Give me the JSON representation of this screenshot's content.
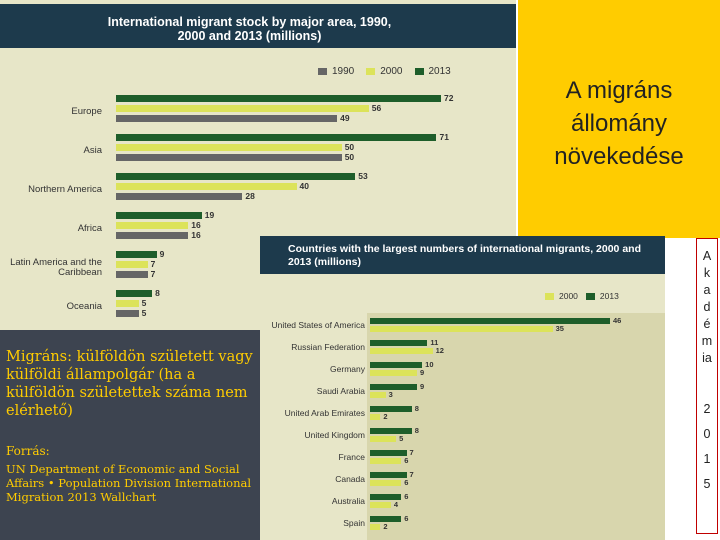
{
  "chart_data": [
    {
      "type": "bar",
      "orientation": "horizontal",
      "title": "International migrant stock by major area, 1990, 2000 and 2013 (millions)",
      "categories": [
        "Europe",
        "Asia",
        "Northern America",
        "Africa",
        "Latin America and the Caribbean",
        "Oceania"
      ],
      "series": [
        {
          "name": "1990",
          "values": [
            49,
            50,
            28,
            16,
            7,
            5
          ],
          "color": "#666666"
        },
        {
          "name": "2000",
          "values": [
            56,
            50,
            40,
            16,
            7,
            5
          ],
          "color": "#dce35a"
        },
        {
          "name": "2013",
          "values": [
            72,
            71,
            53,
            19,
            9,
            8
          ],
          "color": "#1e5e2a"
        }
      ],
      "legend": "top-right",
      "xlim": [
        0,
        80
      ]
    },
    {
      "type": "bar",
      "orientation": "horizontal",
      "title": "Countries with the largest numbers of international migrants, 2000 and 2013 (millions)",
      "categories": [
        "United States of America",
        "Russian Federation",
        "Germany",
        "Saudi Arabia",
        "United Arab Emirates",
        "United Kingdom",
        "France",
        "Canada",
        "Australia",
        "Spain"
      ],
      "series": [
        {
          "name": "2000",
          "values": [
            35,
            12,
            9,
            3,
            2,
            5,
            6,
            6,
            4,
            2
          ],
          "color": "#dce35a"
        },
        {
          "name": "2013",
          "values": [
            46,
            11,
            10,
            9,
            8,
            8,
            7,
            7,
            6,
            6
          ],
          "color": "#1e5e2a"
        }
      ],
      "legend": "top-right",
      "xlim": [
        0,
        50
      ]
    }
  ],
  "slide": {
    "title": "A migráns állomány növekedése",
    "definition": "Migráns: külföldön született vagy külföldi állampolgár (ha a külföldön születettek száma nem elérhető)",
    "source_label": "Forrás:",
    "source_text": "UN Department of Economic and Social Affairs • Population Division International Migration 2013 Wallchart",
    "side_text": [
      "A",
      "k",
      "a",
      "d",
      "é",
      "m",
      "ia",
      "2",
      "0",
      "1",
      "5"
    ]
  }
}
